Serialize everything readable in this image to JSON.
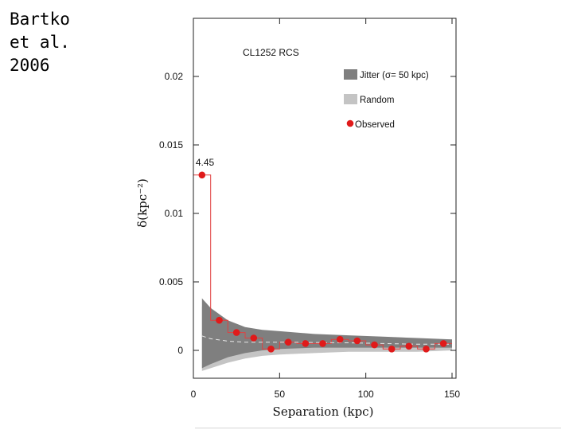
{
  "slide": {
    "caption_lines": [
      "Bartko",
      "et al.",
      "2006"
    ]
  },
  "chart_data": {
    "type": "scatter",
    "title": "CL1252 RCS",
    "xlabel": "Separation (kpc)",
    "ylabel": "δ(kpc⁻²)",
    "xlim": [
      0,
      150
    ],
    "ylim": [
      -0.0014,
      0.0235
    ],
    "xticks": [
      0,
      50,
      100,
      150
    ],
    "xtick_labels": [
      "0",
      "50",
      "100",
      "150"
    ],
    "yticks": [
      0,
      0.005,
      0.01,
      0.015,
      0.02
    ],
    "ytick_labels": [
      "0",
      "0.005",
      "0.01",
      "0.015",
      "0.02"
    ],
    "grid": false,
    "legend_position": "top-right",
    "legend": [
      "Jitter (σ= 50 kpc)",
      "Random",
      "Observed"
    ],
    "annotations": [
      {
        "text": "4.45",
        "x": 5,
        "y": 0.0128
      }
    ],
    "colors": {
      "observed": "#e01a1a",
      "jitter": "#7f7f7f",
      "random": "#c4c4c4",
      "step_line": "#e04040"
    },
    "series": [
      {
        "name": "Observed",
        "x": [
          5,
          15,
          25,
          35,
          45,
          55,
          65,
          75,
          85,
          95,
          105,
          115,
          125,
          135,
          145
        ],
        "y": [
          0.0128,
          0.0022,
          0.0013,
          0.0009,
          0.0001,
          0.0006,
          0.0005,
          0.0005,
          0.0008,
          0.0007,
          0.0004,
          0.0001,
          0.0003,
          0.0001,
          0.0005
        ]
      },
      {
        "name": "Jitter (σ= 50 kpc)",
        "x": [
          5,
          10,
          20,
          30,
          40,
          50,
          70,
          90,
          110,
          130,
          150
        ],
        "upper": [
          0.0038,
          0.0031,
          0.0022,
          0.0017,
          0.0015,
          0.0014,
          0.0012,
          0.0011,
          0.001,
          0.0009,
          0.0008
        ],
        "lower": [
          -0.0013,
          -0.001,
          -0.0005,
          -0.0002,
          0.0,
          0.0001,
          0.0002,
          0.0002,
          0.0002,
          0.0002,
          0.0002
        ]
      },
      {
        "name": "Random",
        "x": [
          5,
          10,
          20,
          30,
          40,
          50,
          70,
          90,
          110,
          130,
          150
        ],
        "upper": [
          0.0032,
          0.0026,
          0.0019,
          0.0015,
          0.0013,
          0.0012,
          0.0011,
          0.001,
          0.0009,
          0.0008,
          0.0008
        ],
        "lower": [
          -0.0015,
          -0.0013,
          -0.0009,
          -0.0006,
          -0.0004,
          -0.0003,
          -0.0002,
          -0.0001,
          -0.0001,
          -0.0001,
          0.0
        ]
      }
    ]
  }
}
